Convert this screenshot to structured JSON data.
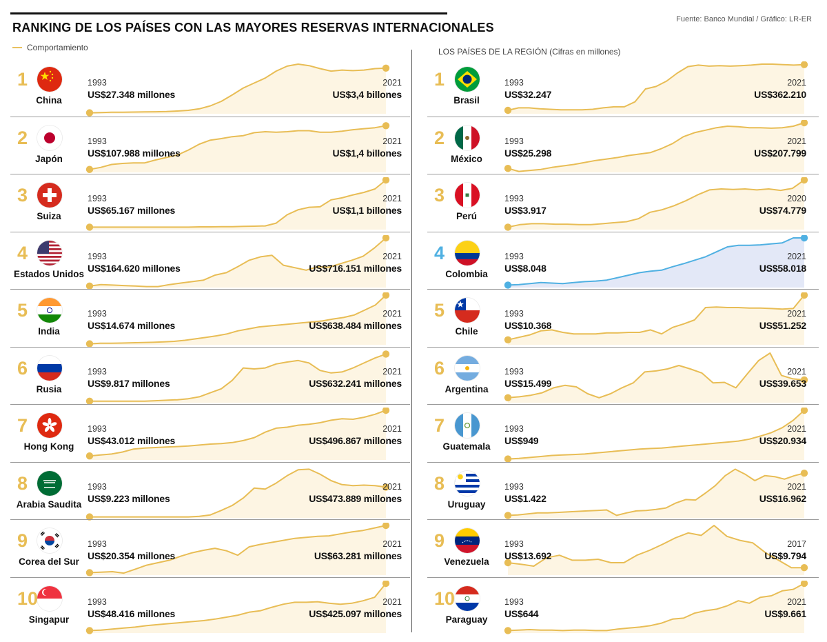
{
  "header": {
    "title": "RANKING DE LOS  PAÍSES CON LAS MAYORES RESERVAS INTERNACIONALES",
    "source": "Fuente: Banco Mundial / Gráfico: LR-ER",
    "legend_label": "Comportamiento",
    "region_title": "LOS PAÍSES DE LA REGIÓN (Cifras en millones)"
  },
  "colors": {
    "line": "#e8bd55",
    "fill": "#fdf5e3",
    "highlight_line": "#4fb0e2",
    "highlight_fill": "#e3e8f7",
    "rank": "#e8bd55"
  },
  "chart_data": [
    {
      "type": "line",
      "title": "RANKING DE LOS  PAÍSES CON LAS MAYORES RESERVAS INTERNACIONALES",
      "series": [
        {
          "rank": "1",
          "name": "China",
          "flag": "china-flag",
          "start_year": "1993",
          "start_label": "US$27.348 millones",
          "end_year": "2021",
          "end_label": "US$3,4 billones",
          "values": [
            2,
            2.5,
            3,
            3.2,
            3.5,
            3.8,
            4,
            4.5,
            5.5,
            7,
            10,
            16,
            25,
            38,
            52,
            62,
            72,
            86,
            96,
            100,
            97,
            91,
            86,
            88,
            87,
            88,
            91,
            92
          ]
        },
        {
          "rank": "2",
          "name": "Japón",
          "flag": "japan-flag",
          "start_year": "1993",
          "start_label": "US$107.988 millones",
          "end_year": "2021",
          "end_label": "US$1,4 billones",
          "values": [
            6,
            10,
            16,
            18,
            19,
            19,
            25,
            30,
            35,
            45,
            57,
            65,
            68,
            72,
            74,
            80,
            82,
            81,
            82,
            84,
            84,
            81,
            81,
            83,
            86,
            88,
            90,
            94
          ]
        },
        {
          "rank": "3",
          "name": "Suiza",
          "flag": "switzerland-flag",
          "start_year": "1993",
          "start_label": "US$65.167 millones",
          "end_year": "2021",
          "end_label": "US$1,1 billones",
          "values": [
            5,
            5,
            5,
            5,
            5,
            5,
            5,
            5,
            5,
            5,
            5.5,
            5.5,
            6,
            6,
            6.5,
            7,
            7.5,
            13,
            30,
            40,
            45,
            46,
            60,
            64,
            70,
            75,
            82,
            100
          ]
        },
        {
          "rank": "4",
          "name": "Estados Unidos",
          "flag": "usa-flag",
          "start_year": "1993",
          "start_label": "US$164.620 millones",
          "end_year": "2021",
          "end_label": "US$716.151 millones",
          "values": [
            3,
            6,
            5,
            4,
            3,
            2,
            2,
            6,
            9,
            12,
            15,
            25,
            30,
            42,
            55,
            62,
            65,
            45,
            40,
            35,
            42,
            41,
            48,
            55,
            63,
            80,
            100
          ]
        },
        {
          "rank": "5",
          "name": "India",
          "flag": "india-flag",
          "start_year": "1993",
          "start_label": "US$14.674 millones",
          "end_year": "2021",
          "end_label": "US$638.484 millones",
          "values": [
            2,
            3,
            3,
            3.5,
            4,
            4.5,
            5,
            6,
            7,
            9,
            12,
            15,
            18,
            22,
            28,
            32,
            36,
            38,
            40,
            42,
            44,
            46,
            48,
            52,
            55,
            60,
            70,
            80,
            100
          ]
        },
        {
          "rank": "6",
          "name": "Rusia",
          "flag": "russia-flag",
          "start_year": "1993",
          "start_label": "US$9.817 millones",
          "end_year": "2021",
          "end_label": "US$632.241 millones",
          "values": [
            3,
            3,
            3,
            3,
            3,
            3,
            4,
            5,
            6,
            8,
            12,
            20,
            28,
            45,
            70,
            68,
            70,
            78,
            82,
            85,
            80,
            65,
            60,
            62,
            70,
            80,
            90,
            98
          ]
        },
        {
          "rank": "7",
          "name": "Hong Kong",
          "flag": "hongkong-flag",
          "start_year": "1993",
          "start_label": "US$43.012 millones",
          "end_year": "2021",
          "end_label": "US$496.867 millones",
          "values": [
            8,
            10,
            12,
            16,
            22,
            24,
            25,
            26,
            27,
            28,
            30,
            32,
            33,
            35,
            39,
            45,
            56,
            64,
            66,
            70,
            72,
            75,
            80,
            83,
            82,
            86,
            92,
            100
          ]
        },
        {
          "rank": "8",
          "name": "Arabia Saudita",
          "flag": "saudi-flag",
          "start_year": "1993",
          "start_label": "US$9.223 millones",
          "end_year": "2021",
          "end_label": "US$473.889 millones",
          "values": [
            2,
            2,
            2,
            2,
            2,
            2,
            2,
            2,
            2,
            2,
            3,
            6,
            15,
            25,
            40,
            60,
            58,
            70,
            85,
            97,
            98,
            88,
            75,
            67,
            65,
            66,
            65,
            62
          ]
        },
        {
          "rank": "9",
          "name": "Corea del Sur",
          "flag": "korea-flag",
          "start_year": "1993",
          "start_label": "US$20.354 millones",
          "end_year": "2021",
          "end_label": "US$63.281 millones",
          "values": [
            5,
            6,
            7,
            4,
            12,
            20,
            25,
            30,
            38,
            45,
            50,
            54,
            49,
            40,
            57,
            62,
            66,
            70,
            74,
            76,
            78,
            79,
            83,
            87,
            90,
            95,
            100
          ]
        },
        {
          "rank": "10",
          "name": "Singapur",
          "flag": "singapore-flag",
          "start_year": "1993",
          "start_label": "US$48.416 millones",
          "end_year": "2021",
          "end_label": "US$425.097 millones",
          "values": [
            5,
            6,
            8,
            10,
            12,
            15,
            17,
            19,
            21,
            23,
            25,
            28,
            32,
            36,
            42,
            45,
            52,
            58,
            62,
            62,
            63,
            60,
            58,
            60,
            65,
            72,
            100
          ]
        }
      ]
    },
    {
      "type": "line",
      "title": "LOS PAÍSES DE LA REGIÓN (Cifras en millones)",
      "series": [
        {
          "rank": "1",
          "name": "Brasil",
          "flag": "brazil-flag",
          "start_year": "1993",
          "start_label": "US$32.247",
          "end_year": "2021",
          "end_label": "US$362.210",
          "values": [
            7,
            12,
            12,
            10,
            9,
            8,
            8,
            8,
            9,
            12,
            14,
            14,
            24,
            50,
            55,
            66,
            82,
            95,
            98,
            96,
            97,
            96,
            97,
            98,
            100,
            100,
            99,
            98,
            99
          ]
        },
        {
          "rank": "2",
          "name": "México",
          "flag": "mexico-flag",
          "start_year": "1993",
          "start_label": "US$25.298",
          "end_year": "2021",
          "end_label": "US$207.799",
          "values": [
            8,
            2,
            4,
            6,
            10,
            13,
            16,
            20,
            24,
            27,
            30,
            34,
            37,
            40,
            48,
            58,
            72,
            80,
            85,
            90,
            93,
            92,
            90,
            90,
            89,
            90,
            93,
            100
          ]
        },
        {
          "rank": "3",
          "name": "Perú",
          "flag": "peru-flag",
          "start_year": "1993",
          "start_label": "US$3.917",
          "end_year": "2020",
          "end_label": "US$74.779",
          "values": [
            5,
            10,
            12,
            12,
            11,
            11,
            10,
            10,
            12,
            14,
            16,
            22,
            35,
            40,
            48,
            58,
            70,
            80,
            82,
            81,
            82,
            80,
            82,
            79,
            83,
            100
          ]
        },
        {
          "rank": "4",
          "name": "Colombia",
          "flag": "colombia-flag",
          "highlight": true,
          "start_year": "1993",
          "start_label": "US$8.048",
          "end_year": "2021",
          "end_label": "US$58.018",
          "values": [
            5,
            6,
            8,
            10,
            9,
            8,
            10,
            12,
            13,
            15,
            20,
            25,
            30,
            33,
            35,
            42,
            48,
            55,
            62,
            72,
            82,
            85,
            85,
            86,
            88,
            90,
            100,
            100
          ]
        },
        {
          "rank": "5",
          "name": "Chile",
          "flag": "chile-flag",
          "start_year": "1993",
          "start_label": "US$10.368",
          "end_year": "2021",
          "end_label": "US$51.252",
          "values": [
            10,
            15,
            20,
            28,
            30,
            25,
            22,
            22,
            22,
            24,
            24,
            25,
            25,
            30,
            22,
            35,
            42,
            50,
            75,
            76,
            75,
            75,
            74,
            74,
            73,
            72,
            73,
            100
          ]
        },
        {
          "rank": "6",
          "name": "Argentina",
          "flag": "argentina-flag",
          "start_year": "1993",
          "start_label": "US$15.499",
          "end_year": "2021",
          "end_label": "US$39.653",
          "values": [
            10,
            12,
            15,
            20,
            30,
            35,
            32,
            18,
            10,
            18,
            30,
            40,
            62,
            64,
            68,
            75,
            68,
            60,
            40,
            41,
            30,
            58,
            85,
            100,
            55,
            48,
            46
          ]
        },
        {
          "rank": "7",
          "name": "Guatemala",
          "flag": "guatemala-flag",
          "start_year": "1993",
          "start_label": "US$949",
          "end_year": "2021",
          "end_label": "US$20.934",
          "values": [
            2,
            3,
            5,
            7,
            9,
            10,
            11,
            12,
            14,
            16,
            18,
            20,
            22,
            23,
            24,
            26,
            28,
            30,
            32,
            34,
            36,
            38,
            42,
            48,
            55,
            65,
            80,
            100
          ]
        },
        {
          "rank": "8",
          "name": "Uruguay",
          "flag": "uruguay-flag",
          "start_year": "1993",
          "start_label": "US$1.422",
          "end_year": "2021",
          "end_label": "US$16.962",
          "values": [
            5,
            6,
            8,
            10,
            10,
            11,
            12,
            13,
            14,
            15,
            16,
            5,
            10,
            14,
            15,
            17,
            20,
            30,
            37,
            36,
            50,
            65,
            85,
            98,
            88,
            75,
            85,
            83,
            78,
            85,
            90
          ]
        },
        {
          "rank": "9",
          "name": "Venezuela",
          "flag": "venezuela-flag",
          "start_year": "1993",
          "start_label": "US$13.692",
          "end_year": "2017",
          "end_label": "US$9.794",
          "values": [
            25,
            22,
            18,
            35,
            40,
            30,
            30,
            32,
            25,
            25,
            40,
            50,
            62,
            75,
            85,
            80,
            100,
            78,
            70,
            65,
            45,
            30,
            15,
            15
          ]
        },
        {
          "rank": "10",
          "name": "Paraguay",
          "flag": "paraguay-flag",
          "start_year": "1993",
          "start_label": "US$644",
          "end_year": "2021",
          "end_label": "US$9.661",
          "values": [
            5,
            6,
            7,
            6,
            6,
            5,
            6,
            6,
            5,
            5,
            8,
            10,
            12,
            15,
            20,
            28,
            30,
            40,
            45,
            48,
            55,
            65,
            60,
            72,
            75,
            85,
            88,
            100
          ]
        }
      ]
    }
  ]
}
